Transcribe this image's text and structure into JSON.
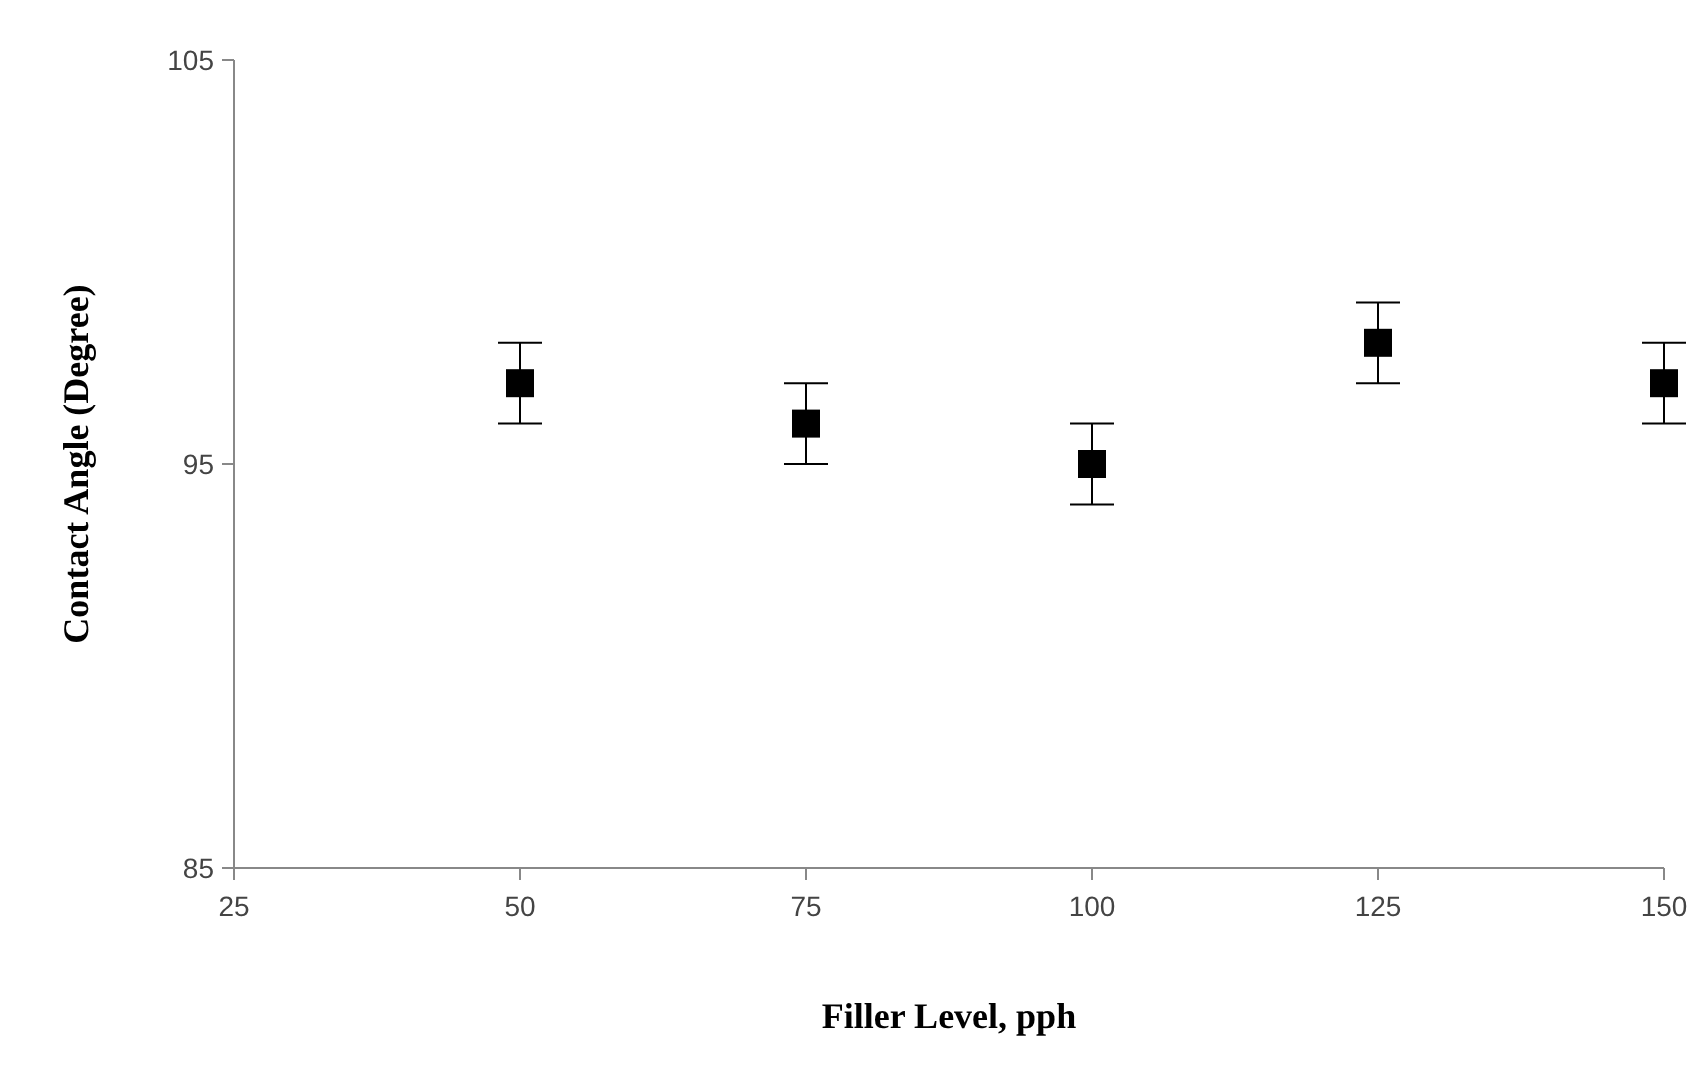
{
  "chart_data": {
    "type": "scatter",
    "xlabel": "Filler Level, pph",
    "ylabel": "Contact Angle (Degree)",
    "x": [
      50,
      75,
      100,
      125,
      150
    ],
    "series": [
      {
        "color": "#000000",
        "values": [
          97,
          96,
          95,
          98,
          97
        ],
        "errors": [
          1,
          1,
          1,
          1,
          1
        ]
      }
    ],
    "xlim": [
      25,
      150
    ],
    "xticks": [
      25,
      50,
      75,
      100,
      125,
      150
    ],
    "ylim": [
      85,
      105
    ],
    "yticks": [
      85,
      95,
      105
    ],
    "grid": false,
    "marker": "square"
  }
}
